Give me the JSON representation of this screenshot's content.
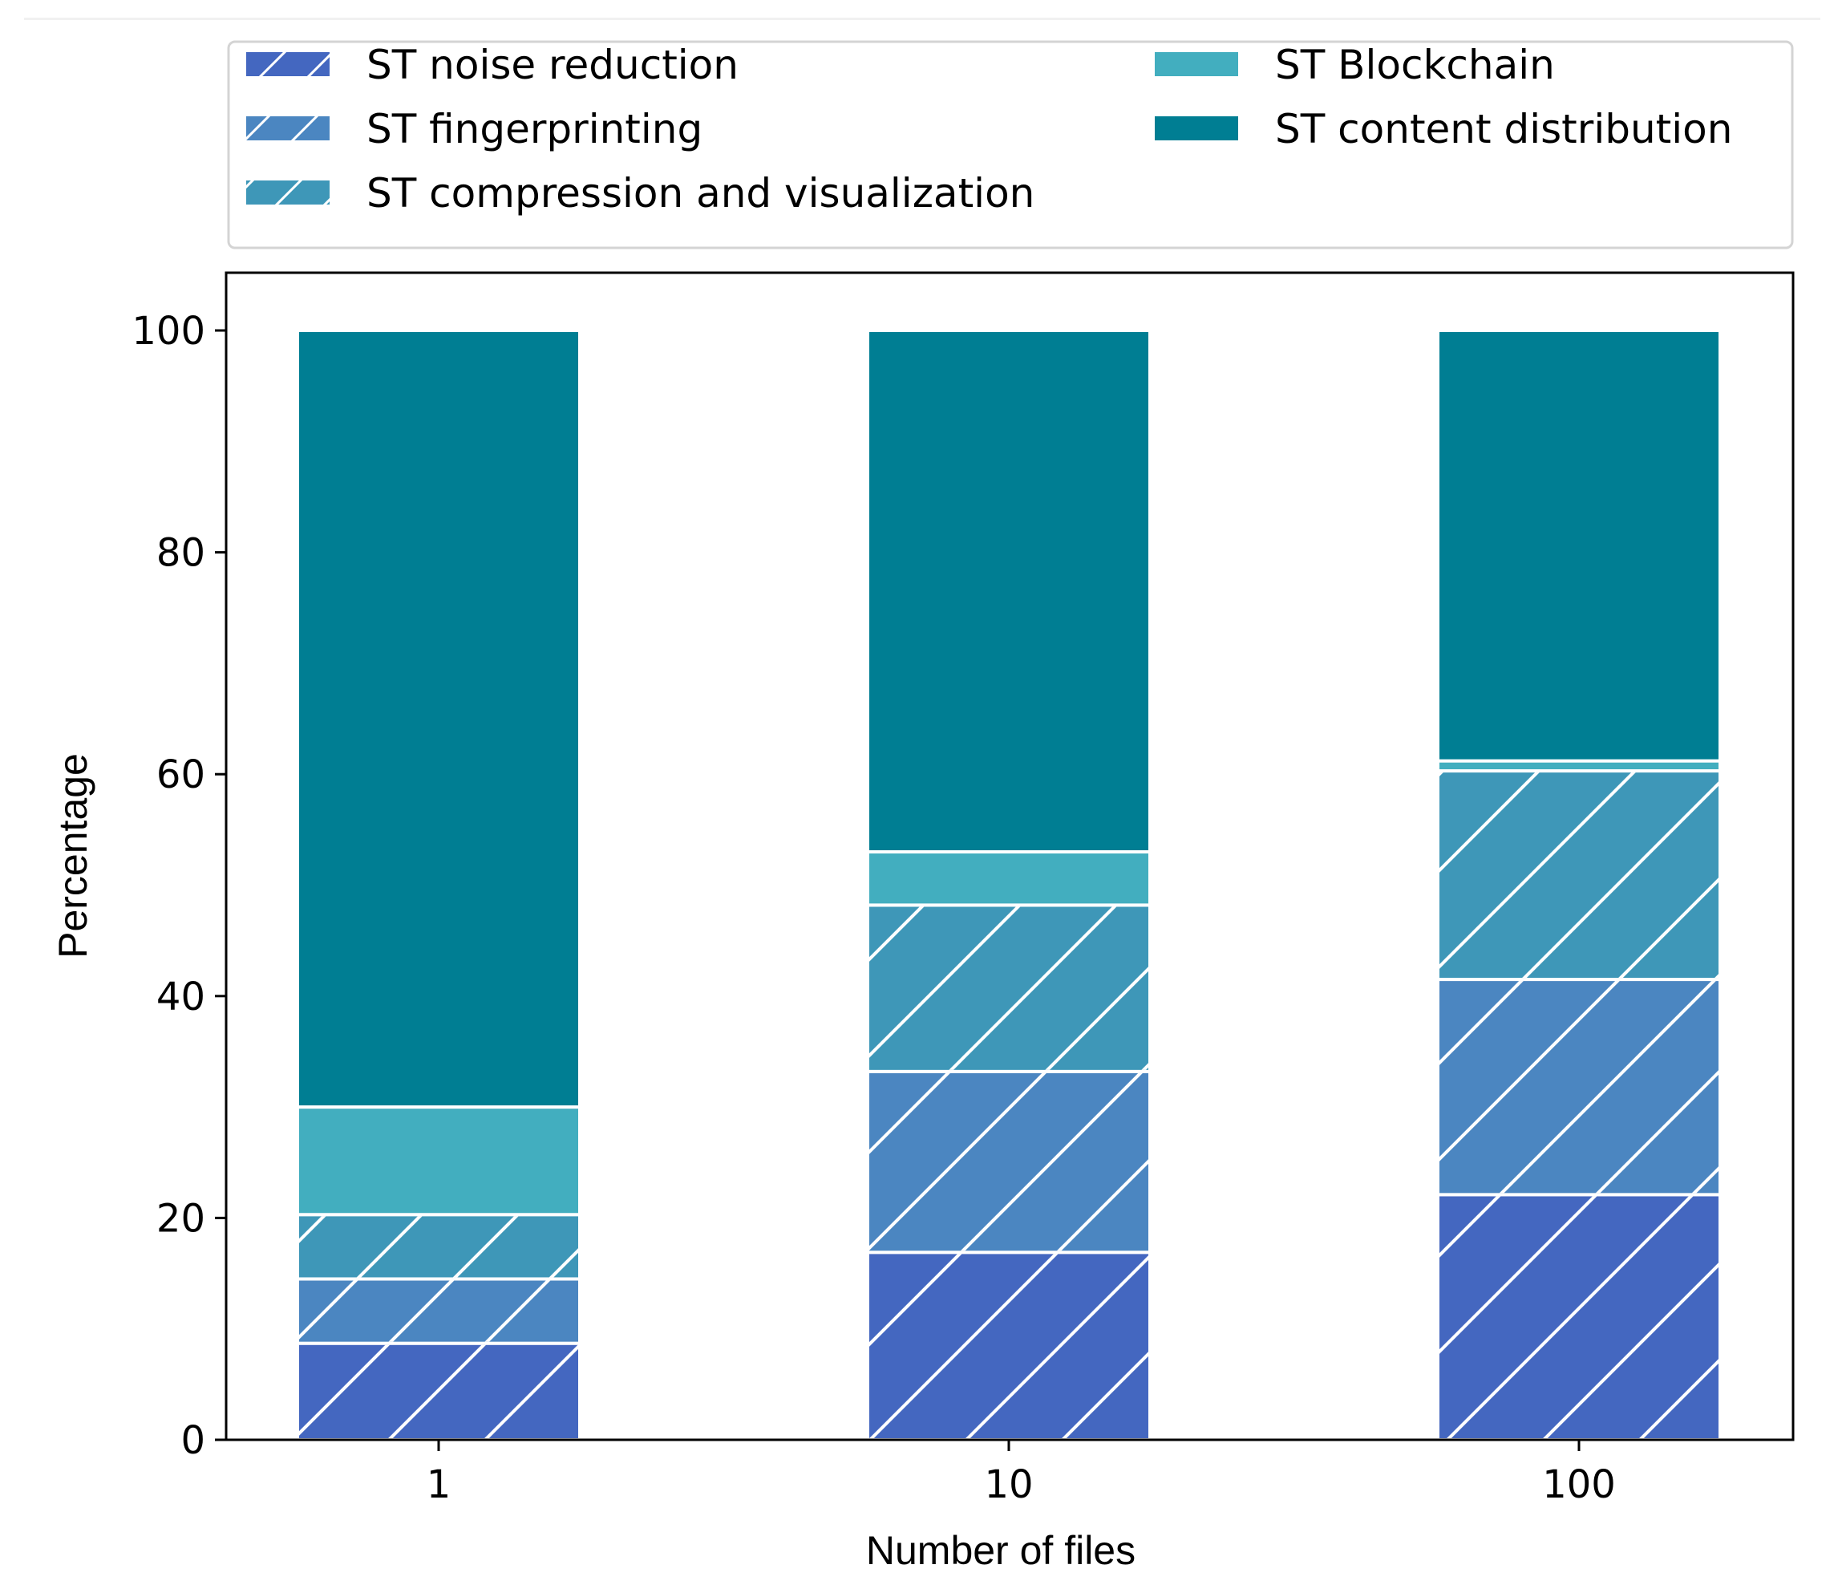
{
  "chart_data": {
    "type": "bar",
    "stacked": true,
    "title": "",
    "xlabel": "Number of files",
    "ylabel": "Percentage",
    "categories": [
      "1",
      "10",
      "100"
    ],
    "ylim": [
      0,
      100
    ],
    "yticks": [
      "0",
      "20",
      "40",
      "60",
      "80",
      "100"
    ],
    "legend_position": "top",
    "series": [
      {
        "name": "ST noise reduction",
        "color": "#4467C0",
        "hatch": true,
        "values": [
          8.7,
          16.9,
          22.1
        ]
      },
      {
        "name": "ST fingerprinting",
        "color": "#4B86C1",
        "hatch": true,
        "values": [
          5.8,
          16.3,
          19.4
        ]
      },
      {
        "name": "ST compression and visualization",
        "color": "#3E97B8",
        "hatch": true,
        "values": [
          5.8,
          15.0,
          18.8
        ]
      },
      {
        "name": "ST Blockchain",
        "color": "#42AEBF",
        "hatch": false,
        "values": [
          9.7,
          4.8,
          0.9
        ]
      },
      {
        "name": "ST content distribution",
        "color": "#007E93",
        "hatch": false,
        "values": [
          70.0,
          47.0,
          38.8
        ]
      }
    ]
  }
}
